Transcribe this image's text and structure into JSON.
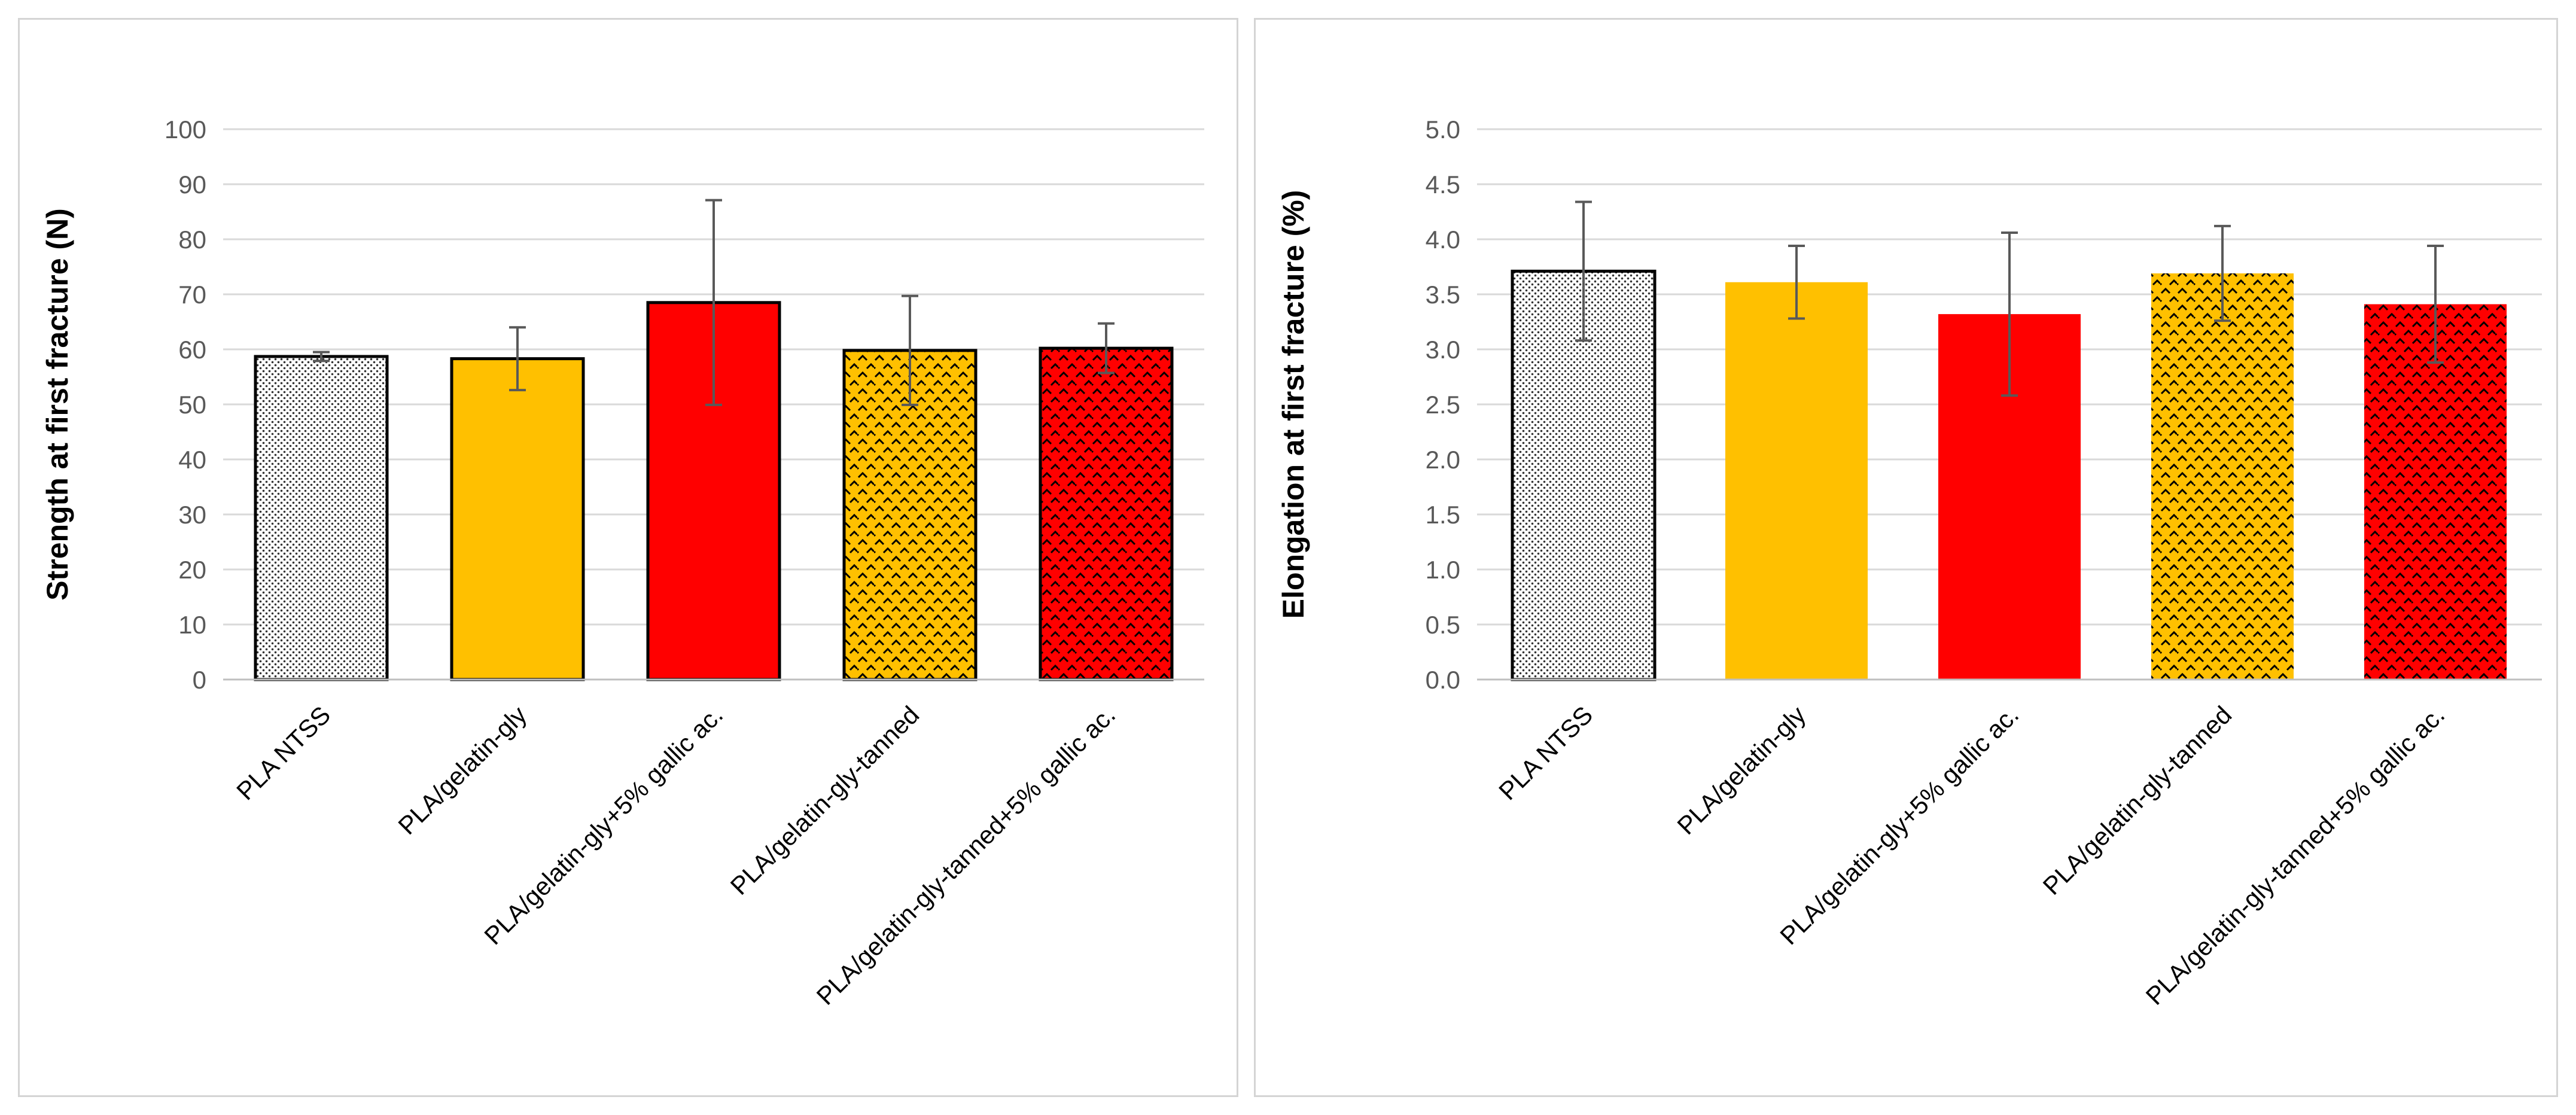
{
  "chart_data": [
    {
      "type": "bar",
      "title": "",
      "xlabel": "",
      "ylabel": "Strength at first fracture (N)",
      "ylim": [
        0,
        100
      ],
      "ytick_step": 10,
      "ytick_decimals": 0,
      "grid": true,
      "categories": [
        "PLA NTSS",
        "PLA/gelatin-gly",
        "PLA/gelatin-gly+5% gallic ac.",
        "PLA/gelatin-gly-tanned",
        "PLA/gelatin-gly-tanned+5% gallic ac."
      ],
      "values": [
        58.7,
        58.3,
        68.5,
        59.8,
        60.2
      ],
      "errors": [
        0.8,
        5.7,
        18.6,
        9.9,
        4.5
      ],
      "colors": [
        "#ffffff",
        "#ffc000",
        "#ff0000",
        "#ffc000",
        "#ff0000"
      ],
      "patterns": [
        "dots",
        "none",
        "none",
        "weave",
        "weave"
      ],
      "outlined": [
        true,
        true,
        true,
        true,
        true
      ]
    },
    {
      "type": "bar",
      "title": "",
      "xlabel": "",
      "ylabel": "Elongation at first fracture (%)",
      "ylim": [
        0,
        5
      ],
      "ytick_step": 0.5,
      "ytick_decimals": 1,
      "grid": true,
      "categories": [
        "PLA NTSS",
        "PLA/gelatin-gly",
        "PLA/gelatin-gly+5% gallic ac.",
        "PLA/gelatin-gly-tanned",
        "PLA/gelatin-gly-tanned+5% gallic ac."
      ],
      "values": [
        3.71,
        3.61,
        3.32,
        3.69,
        3.41
      ],
      "errors": [
        0.63,
        0.33,
        0.74,
        0.43,
        0.53
      ],
      "colors": [
        "#ffffff",
        "#ffc000",
        "#ff0000",
        "#ffc000",
        "#ff0000"
      ],
      "patterns": [
        "dots",
        "none",
        "none",
        "weave",
        "weave"
      ],
      "outlined": [
        true,
        false,
        false,
        false,
        false
      ]
    }
  ]
}
